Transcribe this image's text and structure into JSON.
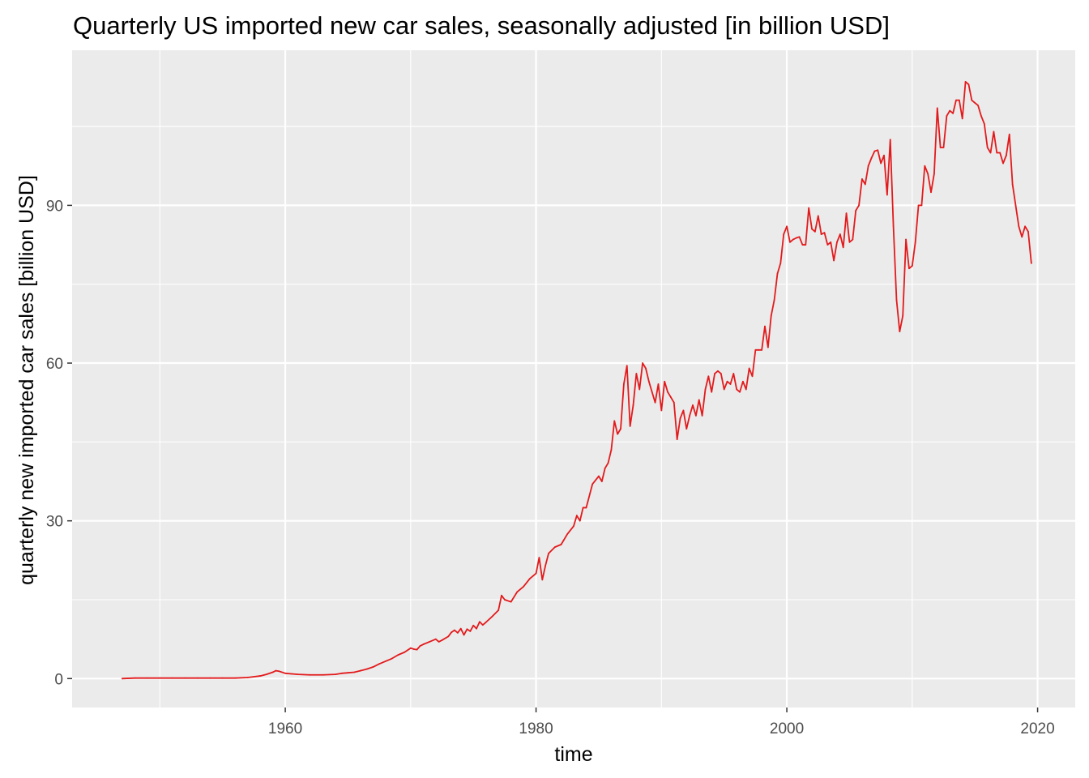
{
  "chart_data": {
    "type": "line",
    "title": "Quarterly US imported new car sales, seasonally adjusted [in billion USD]",
    "xlabel": "time",
    "ylabel": "quarterly new imported car sales [billion USD]",
    "xlim": [
      1943.0,
      2023.0
    ],
    "ylim": [
      -5.5,
      119.5
    ],
    "x_ticks": [
      1960,
      1980,
      2000,
      2020
    ],
    "y_ticks": [
      0,
      30,
      60,
      90
    ],
    "grid": true,
    "legend": "none",
    "colors": {
      "panel": "#ebebeb",
      "grid": "#ffffff",
      "line": "#e31a1c"
    },
    "series": [
      {
        "x": [
          1947.0,
          1948.0,
          1949.0,
          1950.0,
          1951.0,
          1952.0,
          1953.0,
          1954.0,
          1955.0,
          1956.0,
          1957.0,
          1958.0,
          1958.5,
          1959.0,
          1959.25,
          1959.5,
          1960.0,
          1960.5,
          1961.0,
          1962.0,
          1963.0,
          1964.0,
          1964.5,
          1965.0,
          1965.5,
          1966.0,
          1966.5,
          1967.0,
          1967.5,
          1968.0,
          1968.5,
          1969.0,
          1969.5,
          1970.0,
          1970.25,
          1970.5,
          1970.75,
          1971.0,
          1971.5,
          1972.0,
          1972.25,
          1972.5,
          1973.0,
          1973.25,
          1973.5,
          1973.75,
          1974.0,
          1974.25,
          1974.5,
          1974.75,
          1975.0,
          1975.25,
          1975.5,
          1975.75,
          1976.0,
          1976.5,
          1977.0,
          1977.25,
          1977.5,
          1978.0,
          1978.5,
          1979.0,
          1979.5,
          1980.0,
          1980.25,
          1980.5,
          1980.75,
          1981.0,
          1981.5,
          1982.0,
          1982.5,
          1983.0,
          1983.25,
          1983.5,
          1983.75,
          1984.0,
          1984.5,
          1985.0,
          1985.25,
          1985.5,
          1985.75,
          1986.0,
          1986.25,
          1986.5,
          1986.75,
          1987.0,
          1987.25,
          1987.5,
          1987.75,
          1988.0,
          1988.25,
          1988.5,
          1988.75,
          1989.0,
          1989.25,
          1989.5,
          1989.75,
          1990.0,
          1990.25,
          1990.5,
          1990.75,
          1991.0,
          1991.25,
          1991.5,
          1991.75,
          1992.0,
          1992.25,
          1992.5,
          1992.75,
          1993.0,
          1993.25,
          1993.5,
          1993.75,
          1994.0,
          1994.25,
          1994.5,
          1994.75,
          1995.0,
          1995.25,
          1995.5,
          1995.75,
          1996.0,
          1996.25,
          1996.5,
          1996.75,
          1997.0,
          1997.25,
          1997.5,
          1997.75,
          1998.0,
          1998.25,
          1998.5,
          1998.75,
          1999.0,
          1999.25,
          1999.5,
          1999.75,
          2000.0,
          2000.25,
          2000.5,
          2000.75,
          2001.0,
          2001.25,
          2001.5,
          2001.75,
          2002.0,
          2002.25,
          2002.5,
          2002.75,
          2003.0,
          2003.25,
          2003.5,
          2003.75,
          2004.0,
          2004.25,
          2004.5,
          2004.75,
          2005.0,
          2005.25,
          2005.5,
          2005.75,
          2006.0,
          2006.25,
          2006.5,
          2006.75,
          2007.0,
          2007.25,
          2007.5,
          2007.75,
          2008.0,
          2008.25,
          2008.5,
          2008.75,
          2009.0,
          2009.25,
          2009.5,
          2009.75,
          2010.0,
          2010.25,
          2010.5,
          2010.75,
          2011.0,
          2011.25,
          2011.5,
          2011.75,
          2012.0,
          2012.25,
          2012.5,
          2012.75,
          2013.0,
          2013.25,
          2013.5,
          2013.75,
          2014.0,
          2014.25,
          2014.5,
          2014.75,
          2015.0,
          2015.25,
          2015.5,
          2015.75,
          2016.0,
          2016.25,
          2016.5,
          2016.75,
          2017.0,
          2017.25,
          2017.5,
          2017.75,
          2018.0,
          2018.25,
          2018.5,
          2018.75,
          2019.0,
          2019.25,
          2019.5
        ],
        "y": [
          0.0,
          0.1,
          0.1,
          0.1,
          0.1,
          0.1,
          0.1,
          0.1,
          0.1,
          0.1,
          0.2,
          0.5,
          0.8,
          1.2,
          1.5,
          1.4,
          1.0,
          0.9,
          0.8,
          0.7,
          0.7,
          0.8,
          1.0,
          1.1,
          1.2,
          1.5,
          1.8,
          2.2,
          2.8,
          3.3,
          3.8,
          4.5,
          5.0,
          5.8,
          5.6,
          5.5,
          6.2,
          6.5,
          7.0,
          7.5,
          7.0,
          7.3,
          8.0,
          8.8,
          9.2,
          8.7,
          9.5,
          8.3,
          9.4,
          9.0,
          10.1,
          9.5,
          10.8,
          10.2,
          10.7,
          11.8,
          13.0,
          15.8,
          15.0,
          14.6,
          16.5,
          17.5,
          19.0,
          20.0,
          23.0,
          18.8,
          21.5,
          23.8,
          25.0,
          25.5,
          27.5,
          29.0,
          31.0,
          30.0,
          32.5,
          32.5,
          37.0,
          38.5,
          37.5,
          40.0,
          41.0,
          43.5,
          49.0,
          46.5,
          47.5,
          56.0,
          59.5,
          48.0,
          52.0,
          58.0,
          55.0,
          60.0,
          59.0,
          56.5,
          54.5,
          52.5,
          56.0,
          51.0,
          56.5,
          54.5,
          53.5,
          52.5,
          45.5,
          49.5,
          51.0,
          47.5,
          50.0,
          52.0,
          50.0,
          53.0,
          50.0,
          55.0,
          57.5,
          54.5,
          58.0,
          58.5,
          58.0,
          55.0,
          56.5,
          56.0,
          58.0,
          55.0,
          54.5,
          56.5,
          55.0,
          59.0,
          57.5,
          62.5,
          62.5,
          62.5,
          67.0,
          63.0,
          69.0,
          72.0,
          77.0,
          79.0,
          84.5,
          86.0,
          83.0,
          83.5,
          83.8,
          84.0,
          82.5,
          82.5,
          89.5,
          85.5,
          85.0,
          88.0,
          84.5,
          84.8,
          82.5,
          83.0,
          79.5,
          83.0,
          84.5,
          82.0,
          88.5,
          83.0,
          83.5,
          89.0,
          90.0,
          95.0,
          94.0,
          97.5,
          99.0,
          100.3,
          100.5,
          98.0,
          99.5,
          92.0,
          102.5,
          86.0,
          72.0,
          66.0,
          69.0,
          83.5,
          78.0,
          78.5,
          83.0,
          90.0,
          90.0,
          97.5,
          96.0,
          92.5,
          96.0,
          108.5,
          101.0,
          101.0,
          107.0,
          108.0,
          107.5,
          110.0,
          110.0,
          106.5,
          113.5,
          113.0,
          110.0,
          109.5,
          109.0,
          107.0,
          105.5,
          101.0,
          100.0,
          104.0,
          100.0,
          100.0,
          98.0,
          99.5,
          103.5,
          94.0,
          90.0,
          86.0,
          84.0,
          86.0,
          85.0,
          79.0
        ]
      }
    ]
  }
}
